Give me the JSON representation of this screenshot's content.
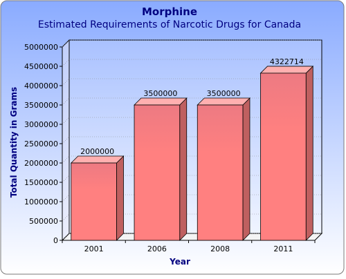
{
  "chart_data": {
    "type": "bar",
    "title": "Morphine",
    "subtitle": "Estimated Requirements of Narcotic Drugs for Canada",
    "xlabel": "Year",
    "ylabel": "Total Quantity in Grams",
    "categories": [
      "2001",
      "2006",
      "2008",
      "2011"
    ],
    "values": [
      2000000,
      3500000,
      3500000,
      4322714
    ],
    "data_labels": [
      "2000000",
      "3500000",
      "3500000",
      "4322714"
    ],
    "ylim": [
      0,
      5000000
    ],
    "yticks": [
      0,
      500000,
      1000000,
      1500000,
      2000000,
      2500000,
      3000000,
      3500000,
      4000000,
      4500000,
      5000000
    ],
    "ytick_labels": [
      "0",
      "500000",
      "1000000",
      "1500000",
      "2000000",
      "2500000",
      "3000000",
      "3500000",
      "4000000",
      "4500000",
      "5000000"
    ],
    "grid": true,
    "legend": "none",
    "bar_style": "3d",
    "colors": {
      "bar_front": "#ff8080",
      "bar_front_top": "#ed7a82",
      "bar_side": "#bf6060",
      "bar_top": "#ffb0b0",
      "background_top": "#8aabff",
      "background_bottom": "#ffffff",
      "title": "#000080",
      "axis_title": "#000080"
    }
  }
}
